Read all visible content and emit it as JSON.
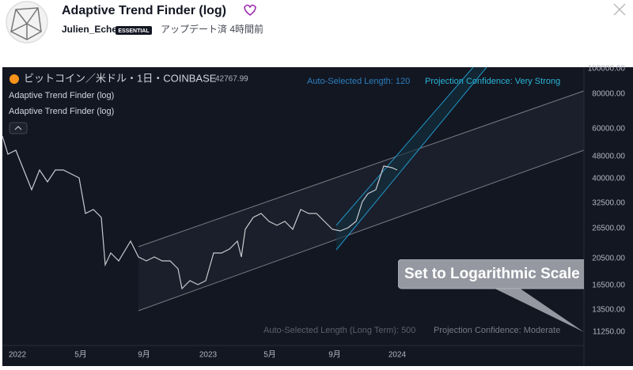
{
  "header": {
    "title": "Adaptive Trend Finder (log)",
    "author": "Julien_Eche",
    "badge": "ESSENTIAL",
    "updated": "アップデート済 4時間前"
  },
  "chart": {
    "symbol": "ビットコイン／米ドル・1日・COINBASE",
    "price": "42767.99",
    "indicators": [
      "Adaptive Trend Finder (log)",
      "Adaptive Trend Finder (log)"
    ],
    "short_term": {
      "length": "Auto-Selected Length: 120",
      "confidence": "Projection Confidence: Very Strong"
    },
    "long_term": {
      "length": "Auto-Selected Length (Long Term): 500",
      "confidence": "Projection Confidence: Moderate"
    },
    "price_axis": [
      "100000.00",
      "80000.00",
      "60000.00",
      "48000.00",
      "40000.00",
      "32500.00",
      "26500.00",
      "20500.00",
      "16500.00",
      "13500.00",
      "11250.00"
    ],
    "time_axis": [
      "2022",
      "5月",
      "9月",
      "2023",
      "5月",
      "9月",
      "2024"
    ],
    "callout": "Set to Logarithmic Scale"
  }
}
